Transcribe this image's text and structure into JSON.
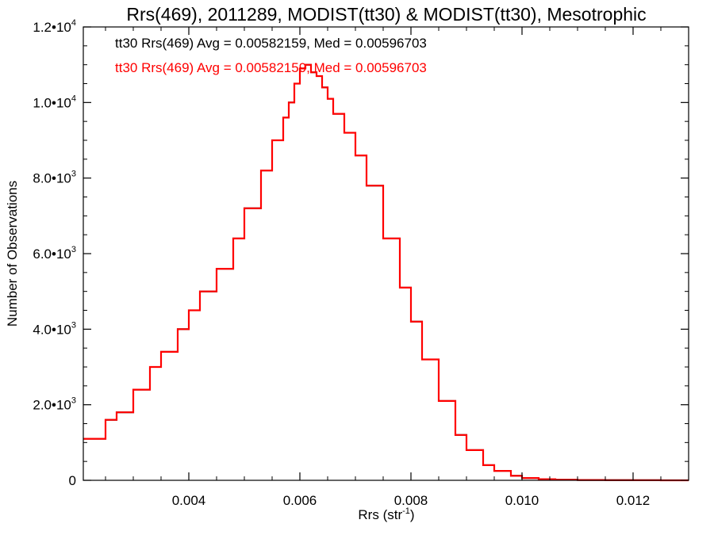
{
  "chart_data": {
    "type": "line",
    "step": true,
    "title": "Rrs(469), 2011289, MODIST(tt30) & MODIST(tt30), Mesotrophic",
    "xlabel": "Rrs (str",
    "xlabel_sup": "-1",
    "xlabel_close": ")",
    "ylabel": "Number of Observations",
    "xlim": [
      0.0021,
      0.013
    ],
    "ylim": [
      0,
      12000
    ],
    "grid": false,
    "x_ticks": [
      {
        "value": 0.004,
        "label": "0.004"
      },
      {
        "value": 0.006,
        "label": "0.006"
      },
      {
        "value": 0.008,
        "label": "0.008"
      },
      {
        "value": 0.01,
        "label": "0.010"
      },
      {
        "value": 0.012,
        "label": "0.012"
      }
    ],
    "y_ticks": [
      {
        "value": 0,
        "mantissa": "0",
        "exp": ""
      },
      {
        "value": 2000,
        "mantissa": "2.0•10",
        "exp": "3"
      },
      {
        "value": 4000,
        "mantissa": "4.0•10",
        "exp": "3"
      },
      {
        "value": 6000,
        "mantissa": "6.0•10",
        "exp": "3"
      },
      {
        "value": 8000,
        "mantissa": "8.0•10",
        "exp": "3"
      },
      {
        "value": 10000,
        "mantissa": "1.0•10",
        "exp": "4"
      },
      {
        "value": 12000,
        "mantissa": "1.2•10",
        "exp": "4"
      }
    ],
    "annotations": [
      {
        "text": "tt30 Rrs(469) Avg = 0.00582159, Med = 0.00596703",
        "color": "#000000"
      },
      {
        "text": "tt30 Rrs(469) Avg = 0.00582159, Med = 0.00596703",
        "color": "#ff0000"
      }
    ],
    "series": [
      {
        "color": "#000000",
        "x": [
          0.0021,
          0.0025,
          0.0027,
          0.003,
          0.0033,
          0.0035,
          0.0038,
          0.004,
          0.0042,
          0.0045,
          0.0048,
          0.005,
          0.0053,
          0.0055,
          0.0057,
          0.0058,
          0.0059,
          0.006,
          0.0061,
          0.0062,
          0.0063,
          0.0064,
          0.0065,
          0.0066,
          0.0068,
          0.007,
          0.0072,
          0.0075,
          0.0078,
          0.008,
          0.0082,
          0.0085,
          0.0088,
          0.009,
          0.0093,
          0.0095,
          0.0098,
          0.01,
          0.0103,
          0.0106,
          0.011,
          0.0115,
          0.012,
          0.0125,
          0.013
        ],
        "y": [
          1100,
          1600,
          1800,
          2400,
          3000,
          3400,
          4000,
          4500,
          5000,
          5600,
          6400,
          7200,
          8200,
          9000,
          9600,
          10000,
          10500,
          10900,
          11000,
          10800,
          10700,
          10400,
          10100,
          9700,
          9200,
          8600,
          7800,
          6400,
          5100,
          4200,
          3200,
          2100,
          1200,
          800,
          400,
          250,
          120,
          60,
          30,
          15,
          8,
          4,
          2,
          1,
          0
        ]
      },
      {
        "color": "#ff0000",
        "x": [
          0.0021,
          0.0025,
          0.0027,
          0.003,
          0.0033,
          0.0035,
          0.0038,
          0.004,
          0.0042,
          0.0045,
          0.0048,
          0.005,
          0.0053,
          0.0055,
          0.0057,
          0.0058,
          0.0059,
          0.006,
          0.0061,
          0.0062,
          0.0063,
          0.0064,
          0.0065,
          0.0066,
          0.0068,
          0.007,
          0.0072,
          0.0075,
          0.0078,
          0.008,
          0.0082,
          0.0085,
          0.0088,
          0.009,
          0.0093,
          0.0095,
          0.0098,
          0.01,
          0.0103,
          0.0106,
          0.011,
          0.0115,
          0.012,
          0.0125,
          0.013
        ],
        "y": [
          1100,
          1600,
          1800,
          2400,
          3000,
          3400,
          4000,
          4500,
          5000,
          5600,
          6400,
          7200,
          8200,
          9000,
          9600,
          10000,
          10500,
          10900,
          11000,
          10800,
          10700,
          10400,
          10100,
          9700,
          9200,
          8600,
          7800,
          6400,
          5100,
          4200,
          3200,
          2100,
          1200,
          800,
          400,
          250,
          120,
          60,
          30,
          15,
          8,
          4,
          2,
          1,
          0
        ]
      }
    ]
  }
}
